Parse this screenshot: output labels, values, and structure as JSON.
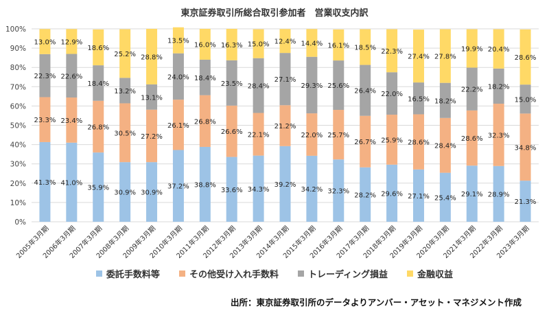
{
  "chart_data": {
    "type": "bar",
    "stacked": true,
    "title": "東京証券取引所総合取引参加者　営業収支内訳",
    "categories": [
      "2005年3月期",
      "2006年3月期",
      "2007年3月期",
      "2008年3月期",
      "2009年3月期",
      "2010年3月期",
      "2011年3月期",
      "2012年3月期",
      "2013年3月期",
      "2014年3月期",
      "2015年3月期",
      "2016年3月期",
      "2017年3月期",
      "2018年3月期",
      "2019年3月期",
      "2020年3月期",
      "2021年3月期",
      "2022年3月期",
      "2023年3月期"
    ],
    "series": [
      {
        "name": "委託手数料等",
        "color": "#9dc3e6",
        "values": [
          41.3,
          41.0,
          35.9,
          30.9,
          30.9,
          37.2,
          38.8,
          33.6,
          34.3,
          39.2,
          34.2,
          32.3,
          28.2,
          29.6,
          27.1,
          25.4,
          29.1,
          28.9,
          21.3
        ]
      },
      {
        "name": "その他受け入れ手数料",
        "color": "#f4b183",
        "values": [
          23.3,
          23.4,
          26.8,
          30.5,
          27.2,
          26.1,
          26.8,
          26.6,
          22.1,
          21.2,
          22.0,
          25.7,
          26.7,
          25.9,
          28.6,
          28.4,
          28.6,
          32.3,
          34.8
        ]
      },
      {
        "name": "トレーディング損益",
        "color": "#a5a5a5",
        "values": [
          22.3,
          22.6,
          18.4,
          13.2,
          13.1,
          24.0,
          18.4,
          23.5,
          28.4,
          27.1,
          29.3,
          25.6,
          26.4,
          22.0,
          16.5,
          18.2,
          22.2,
          18.2,
          15.0
        ]
      },
      {
        "name": "金融収益",
        "color": "#ffd966",
        "values": [
          13.0,
          12.9,
          18.6,
          25.2,
          28.8,
          13.5,
          16.0,
          16.3,
          15.0,
          12.4,
          14.4,
          16.1,
          18.5,
          22.3,
          27.4,
          27.8,
          19.9,
          20.4,
          28.6
        ]
      }
    ],
    "ylim": [
      0,
      100
    ],
    "yticks": [
      "0%",
      "10%",
      "20%",
      "30%",
      "40%",
      "50%",
      "60%",
      "70%",
      "80%",
      "90%",
      "100%"
    ],
    "grid": true,
    "legend_position": "bottom"
  },
  "source_note": "出所：東京証券取引所のデータよりアンバー・アセット・マネジメント作成"
}
